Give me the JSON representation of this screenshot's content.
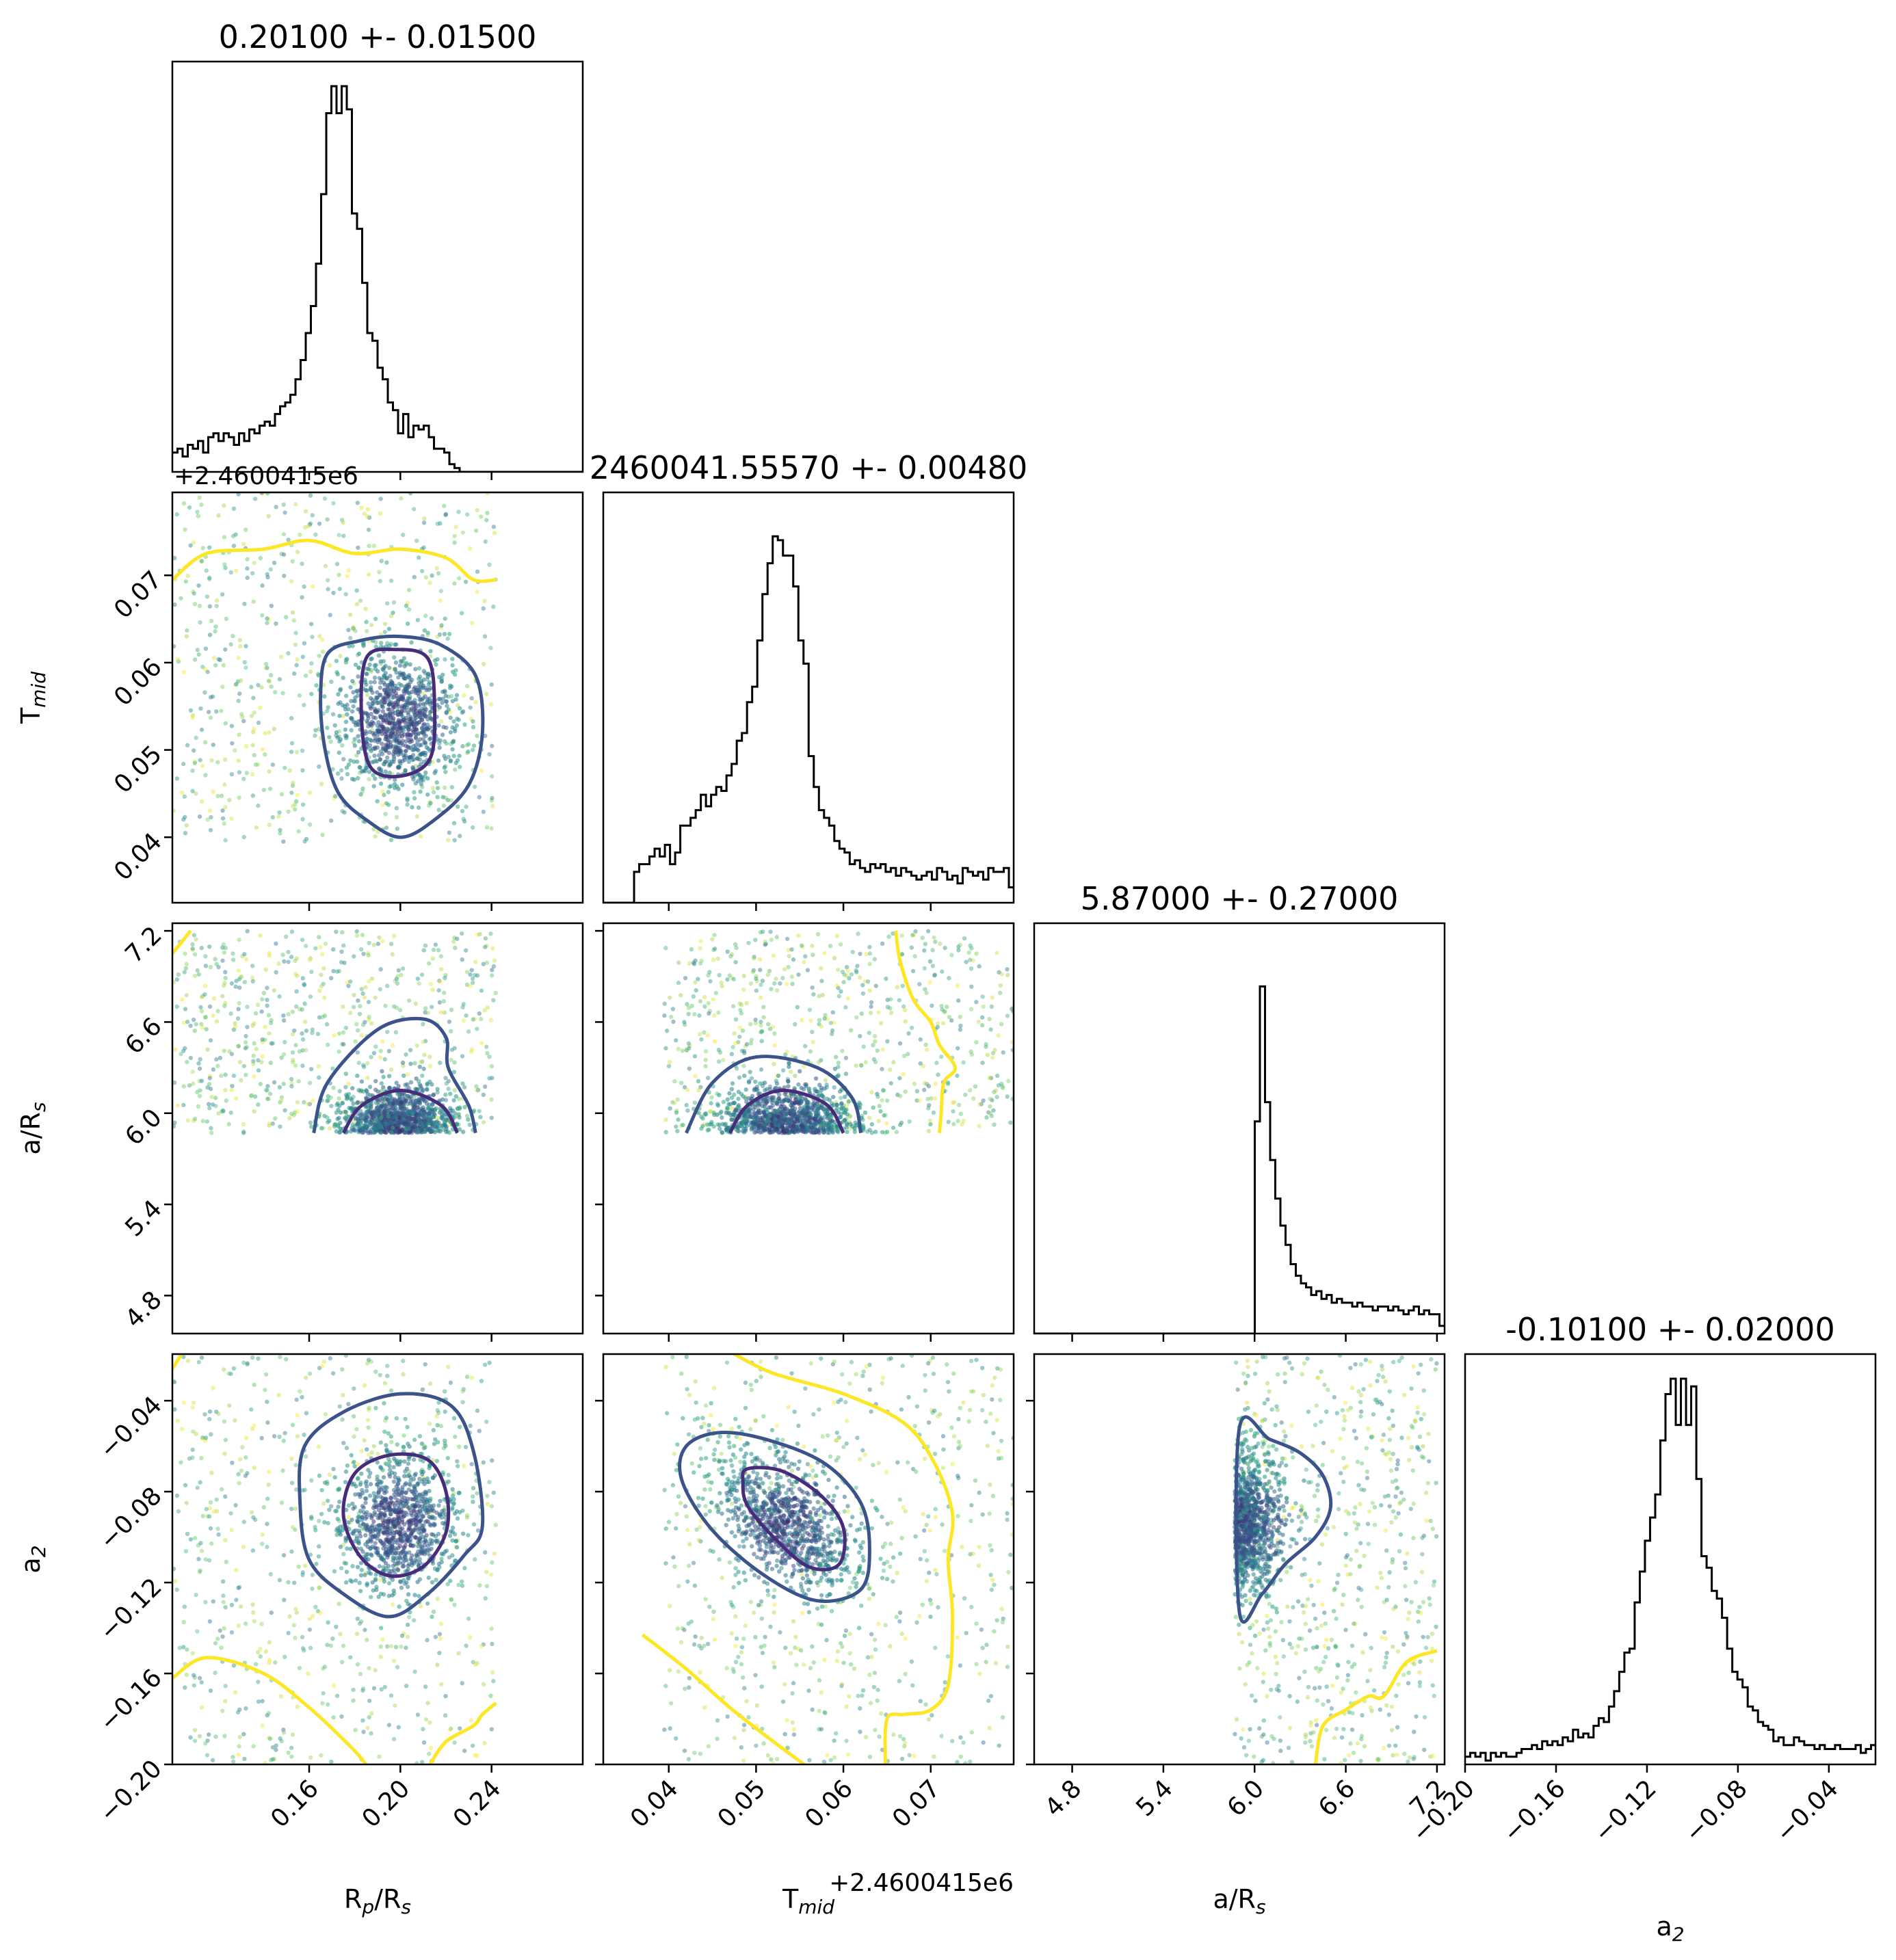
{
  "chart_data": {
    "type": "corner",
    "parameters": [
      {
        "key": "rp",
        "title": "0.20100 +- 0.01500",
        "label": "R",
        "label_sub": "p",
        "label_tail": "/R",
        "label_sub2": "s",
        "range": [
          0.1,
          0.28
        ],
        "ticks": [
          0.16,
          0.2,
          0.24
        ],
        "tick_labels": [
          "0.16",
          "0.20",
          "0.24"
        ],
        "offset": "",
        "mean": 0.201,
        "std": 0.015
      },
      {
        "key": "tmid",
        "title": "2460041.55570 +- 0.00480",
        "label": "T",
        "label_sub": "mid",
        "label_tail": "",
        "label_sub2": "",
        "range": [
          0.0325,
          0.0795
        ],
        "ticks": [
          0.04,
          0.05,
          0.06,
          0.07
        ],
        "tick_labels": [
          "0.04",
          "0.05",
          "0.06",
          "0.07"
        ],
        "offset": "+2.4600415e6",
        "mean": 0.0557,
        "std": 0.0048
      },
      {
        "key": "ars",
        "title": "5.87000 +- 0.27000",
        "label": "a/R",
        "label_sub": "s",
        "label_tail": "",
        "label_sub2": "",
        "range": [
          4.55,
          7.25
        ],
        "ticks": [
          4.8,
          5.4,
          6.0,
          6.6,
          7.2
        ],
        "tick_labels": [
          "4.8",
          "5.4",
          "6.0",
          "6.6",
          "7.2"
        ],
        "offset": "",
        "mean": 5.87,
        "std": 0.27
      },
      {
        "key": "a2",
        "title": "-0.10100 +- 0.02000",
        "label": "a",
        "label_sub": "2",
        "label_tail": "",
        "label_sub2": "",
        "range": [
          -0.2,
          -0.0195
        ],
        "ticks": [
          -0.2,
          -0.16,
          -0.12,
          -0.08,
          -0.04
        ],
        "tick_labels": [
          "−0.20",
          "−0.16",
          "−0.12",
          "−0.08",
          "−0.04"
        ],
        "offset": "",
        "mean": -0.101,
        "std": 0.02
      }
    ],
    "histograms": {
      "rp": {
        "bin_start": 0.1,
        "bin_width": 0.00225,
        "peak_count": 1.0,
        "counts": [
          0.05,
          0.06,
          0.04,
          0.07,
          0.06,
          0.08,
          0.05,
          0.09,
          0.1,
          0.08,
          0.1,
          0.09,
          0.07,
          0.1,
          0.08,
          0.11,
          0.1,
          0.12,
          0.13,
          0.12,
          0.15,
          0.17,
          0.18,
          0.2,
          0.24,
          0.29,
          0.36,
          0.43,
          0.54,
          0.72,
          0.93,
          1.0,
          0.93,
          1.0,
          0.94,
          0.67,
          0.63,
          0.49,
          0.36,
          0.34,
          0.27,
          0.24,
          0.18,
          0.16,
          0.1,
          0.15,
          0.09,
          0.12,
          0.11,
          0.12,
          0.09,
          0.06,
          0.06,
          0.05,
          0.02,
          0.01,
          0,
          0,
          0,
          0,
          0,
          0,
          0,
          0,
          0,
          0,
          0,
          0,
          0,
          0,
          0,
          0,
          0,
          0,
          0,
          0,
          0,
          0,
          0,
          0
        ]
      },
      "tmid": {
        "bin_start": 0.0325,
        "bin_width": 0.000588,
        "peak_count": 1.0,
        "counts": [
          0,
          0,
          0,
          0,
          0,
          0,
          0.08,
          0.1,
          0.1,
          0.12,
          0.14,
          0.12,
          0.15,
          0.1,
          0.13,
          0.2,
          0.2,
          0.22,
          0.24,
          0.28,
          0.25,
          0.28,
          0.3,
          0.29,
          0.33,
          0.36,
          0.42,
          0.44,
          0.52,
          0.56,
          0.68,
          0.8,
          0.88,
          0.95,
          0.94,
          0.9,
          0.9,
          0.82,
          0.68,
          0.62,
          0.38,
          0.3,
          0.24,
          0.22,
          0.2,
          0.16,
          0.14,
          0.13,
          0.1,
          0.11,
          0.09,
          0.08,
          0.1,
          0.09,
          0.1,
          0.08,
          0.09,
          0.07,
          0.09,
          0.08,
          0.07,
          0.06,
          0.07,
          0.08,
          0.06,
          0.09,
          0.08,
          0.06,
          0.07,
          0.05,
          0.09,
          0.08,
          0.07,
          0.08,
          0.06,
          0.09,
          0.08,
          0.08,
          0.09,
          0.04
        ]
      },
      "ars": {
        "bin_start": 4.55,
        "bin_width": 0.03375,
        "peak_count": 1.0,
        "counts": [
          0,
          0,
          0,
          0,
          0,
          0,
          0,
          0,
          0,
          0,
          0,
          0,
          0,
          0,
          0,
          0,
          0,
          0,
          0,
          0,
          0,
          0,
          0,
          0,
          0,
          0,
          0,
          0,
          0,
          0,
          0,
          0,
          0,
          0,
          0,
          0,
          0,
          0,
          0,
          0,
          0,
          0,
          0,
          0.55,
          0.9,
          0.6,
          0.45,
          0.35,
          0.28,
          0.23,
          0.18,
          0.15,
          0.13,
          0.12,
          0.1,
          0.11,
          0.09,
          0.1,
          0.08,
          0.09,
          0.08,
          0.08,
          0.07,
          0.08,
          0.07,
          0.07,
          0.06,
          0.07,
          0.07,
          0.06,
          0.07,
          0.06,
          0.05,
          0.06,
          0.07,
          0.05,
          0.06,
          0.05,
          0.05,
          0.02
        ]
      },
      "a2": {
        "bin_start": -0.2,
        "bin_width": 0.00226,
        "peak_count": 1.0,
        "counts": [
          0.02,
          0.03,
          0.02,
          0.03,
          0.01,
          0.03,
          0.02,
          0.03,
          0.02,
          0.02,
          0.03,
          0.04,
          0.04,
          0.05,
          0.04,
          0.06,
          0.05,
          0.06,
          0.05,
          0.07,
          0.06,
          0.09,
          0.07,
          0.08,
          0.07,
          0.1,
          0.12,
          0.11,
          0.15,
          0.19,
          0.24,
          0.29,
          0.3,
          0.42,
          0.5,
          0.58,
          0.64,
          0.7,
          0.84,
          0.96,
          1.0,
          0.88,
          1.0,
          0.88,
          0.98,
          0.74,
          0.54,
          0.51,
          0.45,
          0.43,
          0.38,
          0.3,
          0.24,
          0.22,
          0.2,
          0.15,
          0.14,
          0.11,
          0.1,
          0.09,
          0.06,
          0.07,
          0.05,
          0.05,
          0.07,
          0.06,
          0.05,
          0.05,
          0.04,
          0.05,
          0.04,
          0.04,
          0.05,
          0.04,
          0.04,
          0.04,
          0.05,
          0.03,
          0.04,
          0.05
        ]
      }
    },
    "scatter": {
      "n_points": 1600,
      "colormap": "viridis",
      "color_stops": [
        "#440154",
        "#3b528b",
        "#21908d",
        "#5dc963",
        "#fde725"
      ],
      "rp_clip": [
        0.1,
        0.242
      ],
      "tmid_clip": [
        0.0375,
        0.0795
      ],
      "ars_clip": [
        5.87,
        7.2
      ],
      "a2_clip": [
        -0.2,
        -0.0195
      ]
    },
    "contours": {
      "colors": {
        "inner": "#472c7a",
        "middle": "#3b528b",
        "outer": "#fde725"
      },
      "rp_tmid": {
        "inner": [
          [
            0.185,
            0.0605
          ],
          [
            0.198,
            0.0615
          ],
          [
            0.212,
            0.0605
          ],
          [
            0.215,
            0.055
          ],
          [
            0.213,
            0.049
          ],
          [
            0.2,
            0.047
          ],
          [
            0.187,
            0.048
          ],
          [
            0.183,
            0.0535
          ]
        ],
        "middle": [
          [
            0.168,
            0.061
          ],
          [
            0.182,
            0.0625
          ],
          [
            0.2,
            0.063
          ],
          [
            0.218,
            0.062
          ],
          [
            0.233,
            0.0585
          ],
          [
            0.236,
            0.052
          ],
          [
            0.23,
            0.046
          ],
          [
            0.215,
            0.042
          ],
          [
            0.2,
            0.04
          ],
          [
            0.185,
            0.042
          ],
          [
            0.173,
            0.045
          ],
          [
            0.167,
            0.05
          ],
          [
            0.165,
            0.056
          ]
        ],
        "outer": [
          [
            0.1,
            0.0695
          ],
          [
            0.115,
            0.0725
          ],
          [
            0.14,
            0.073
          ],
          [
            0.16,
            0.074
          ],
          [
            0.18,
            0.0725
          ],
          [
            0.2,
            0.073
          ],
          [
            0.22,
            0.072
          ],
          [
            0.232,
            0.0695
          ],
          [
            0.242,
            0.0695
          ]
        ]
      },
      "rp_ars": {
        "inner": [
          [
            0.175,
            5.87
          ],
          [
            0.183,
            6.05
          ],
          [
            0.2,
            6.15
          ],
          [
            0.218,
            6.05
          ],
          [
            0.225,
            5.87
          ]
        ],
        "middle": [
          [
            0.162,
            5.87
          ],
          [
            0.168,
            6.2
          ],
          [
            0.19,
            6.55
          ],
          [
            0.21,
            6.62
          ],
          [
            0.22,
            6.5
          ],
          [
            0.221,
            6.3
          ],
          [
            0.23,
            6.05
          ],
          [
            0.233,
            5.87
          ]
        ],
        "outer": [
          [
            0.1,
            7.05
          ],
          [
            0.108,
            7.2
          ]
        ]
      },
      "rp_a2": {
        "inner": [
          [
            0.18,
            -0.072
          ],
          [
            0.195,
            -0.064
          ],
          [
            0.212,
            -0.066
          ],
          [
            0.22,
            -0.08
          ],
          [
            0.22,
            -0.098
          ],
          [
            0.21,
            -0.113
          ],
          [
            0.195,
            -0.117
          ],
          [
            0.182,
            -0.108
          ],
          [
            0.175,
            -0.09
          ]
        ],
        "middle": [
          [
            0.158,
            -0.06
          ],
          [
            0.175,
            -0.045
          ],
          [
            0.2,
            -0.037
          ],
          [
            0.222,
            -0.042
          ],
          [
            0.232,
            -0.062
          ],
          [
            0.236,
            -0.095
          ],
          [
            0.228,
            -0.108
          ],
          [
            0.212,
            -0.125
          ],
          [
            0.195,
            -0.135
          ],
          [
            0.175,
            -0.125
          ],
          [
            0.16,
            -0.11
          ],
          [
            0.156,
            -0.085
          ]
        ],
        "outer_a": [
          [
            0.1,
            -0.162
          ],
          [
            0.115,
            -0.153
          ],
          [
            0.14,
            -0.16
          ],
          [
            0.16,
            -0.175
          ],
          [
            0.178,
            -0.192
          ],
          [
            0.185,
            -0.2
          ]
        ],
        "outer_b": [
          [
            0.213,
            -0.2
          ],
          [
            0.22,
            -0.19
          ],
          [
            0.232,
            -0.183
          ],
          [
            0.236,
            -0.178
          ],
          [
            0.242,
            -0.173
          ]
        ],
        "outer_c": [
          [
            0.104,
            -0.0195
          ],
          [
            0.1,
            -0.026
          ]
        ]
      },
      "tmid_ars": {
        "inner": [
          [
            0.047,
            5.87
          ],
          [
            0.049,
            6.05
          ],
          [
            0.053,
            6.15
          ],
          [
            0.058,
            6.06
          ],
          [
            0.06,
            5.87
          ]
        ],
        "middle": [
          [
            0.042,
            5.87
          ],
          [
            0.045,
            6.2
          ],
          [
            0.05,
            6.37
          ],
          [
            0.057,
            6.3
          ],
          [
            0.061,
            6.1
          ],
          [
            0.062,
            5.87
          ]
        ],
        "outer": [
          [
            0.066,
            7.2
          ],
          [
            0.0665,
            7.0
          ],
          [
            0.068,
            6.75
          ],
          [
            0.07,
            6.6
          ],
          [
            0.071,
            6.45
          ],
          [
            0.0728,
            6.3
          ],
          [
            0.0715,
            6.2
          ],
          [
            0.0712,
            6.0
          ],
          [
            0.071,
            5.87
          ]
        ]
      },
      "tmid_a2": {
        "inner": [
          [
            0.049,
            -0.07
          ],
          [
            0.053,
            -0.071
          ],
          [
            0.0575,
            -0.082
          ],
          [
            0.06,
            -0.096
          ],
          [
            0.0595,
            -0.112
          ],
          [
            0.056,
            -0.113
          ],
          [
            0.052,
            -0.1
          ],
          [
            0.049,
            -0.086
          ],
          [
            0.0485,
            -0.076
          ]
        ],
        "middle": [
          [
            0.042,
            -0.06
          ],
          [
            0.046,
            -0.054
          ],
          [
            0.052,
            -0.058
          ],
          [
            0.058,
            -0.068
          ],
          [
            0.062,
            -0.085
          ],
          [
            0.063,
            -0.105
          ],
          [
            0.062,
            -0.123
          ],
          [
            0.057,
            -0.128
          ],
          [
            0.051,
            -0.117
          ],
          [
            0.045,
            -0.097
          ],
          [
            0.0415,
            -0.075
          ]
        ],
        "outer_a": [
          [
            0.0475,
            -0.0195
          ],
          [
            0.052,
            -0.028
          ],
          [
            0.06,
            -0.037
          ],
          [
            0.067,
            -0.05
          ],
          [
            0.0705,
            -0.068
          ],
          [
            0.0725,
            -0.09
          ],
          [
            0.072,
            -0.11
          ],
          [
            0.0725,
            -0.135
          ],
          [
            0.072,
            -0.165
          ],
          [
            0.07,
            -0.176
          ],
          [
            0.067,
            -0.178
          ],
          [
            0.065,
            -0.18
          ],
          [
            0.0648,
            -0.2
          ]
        ],
        "outer_b": [
          [
            0.037,
            -0.143
          ],
          [
            0.042,
            -0.158
          ],
          [
            0.047,
            -0.175
          ],
          [
            0.052,
            -0.19
          ],
          [
            0.0555,
            -0.2
          ]
        ]
      },
      "ars_a2": {
        "middle": [
          [
            5.9,
            -0.052
          ],
          [
            6.1,
            -0.057
          ],
          [
            6.3,
            -0.063
          ],
          [
            6.45,
            -0.073
          ],
          [
            6.5,
            -0.087
          ],
          [
            6.4,
            -0.1
          ],
          [
            6.2,
            -0.112
          ],
          [
            6.05,
            -0.125
          ],
          [
            5.9,
            -0.133
          ]
        ],
        "outer": [
          [
            6.4,
            -0.2
          ],
          [
            6.45,
            -0.183
          ],
          [
            6.6,
            -0.176
          ],
          [
            6.75,
            -0.17
          ],
          [
            6.85,
            -0.17
          ],
          [
            7.0,
            -0.155
          ],
          [
            7.2,
            -0.15
          ]
        ]
      }
    }
  }
}
